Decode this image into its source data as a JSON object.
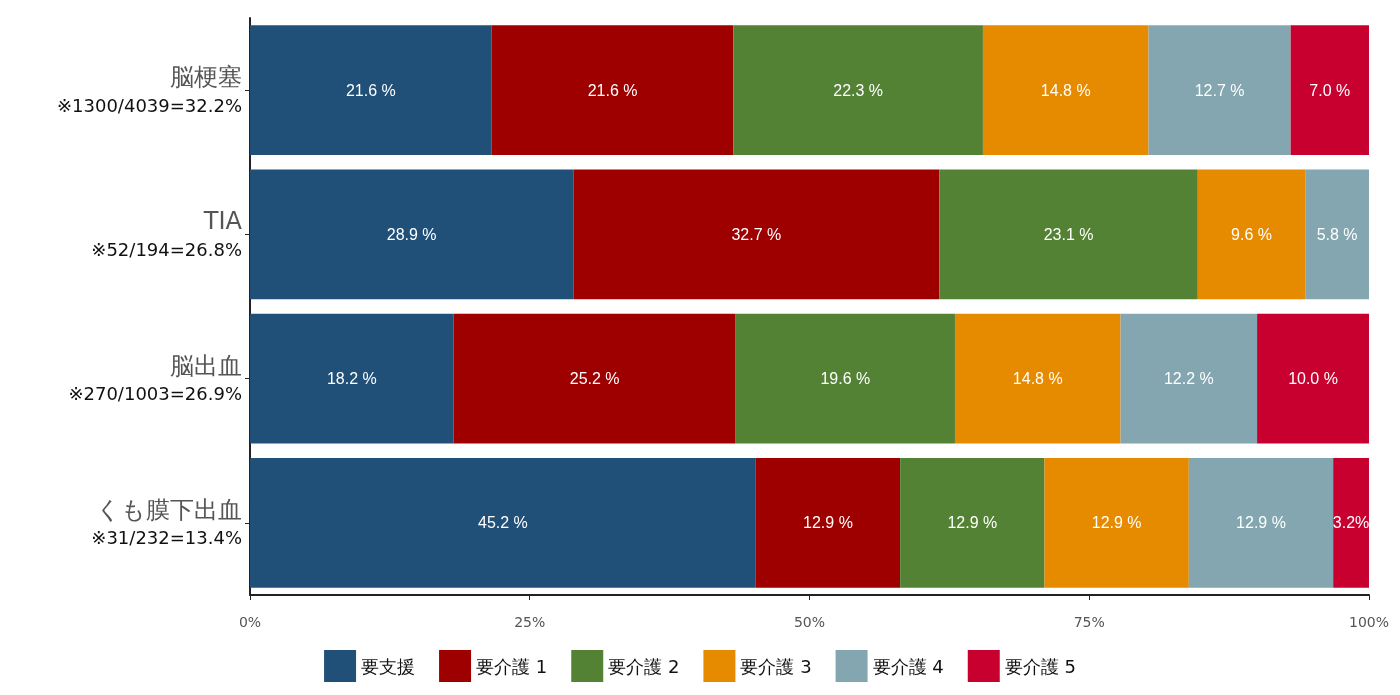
{
  "chart_data": {
    "type": "bar",
    "orientation": "horizontal",
    "stacked": true,
    "categories": [
      "脳梗塞\n※1300/4039=32.2%",
      "TIA\n※52/194=26.8%",
      "脳出血\n※270/1003=26.9%",
      "くも膜下出血\n※31/232=13.4%"
    ],
    "xlim": [
      0,
      100
    ],
    "xticks": [
      {
        "value": 0,
        "label": "0%"
      },
      {
        "value": 25,
        "label": "25%"
      },
      {
        "value": 50,
        "label": "50%"
      },
      {
        "value": 75,
        "label": "75%"
      },
      {
        "value": 100,
        "label": "100%"
      }
    ],
    "series": [
      {
        "name": "要支援",
        "color": "#204f78",
        "values": [
          21.6,
          28.9,
          18.2,
          45.2
        ],
        "value_labels": [
          "21.6 %",
          "28.9 %",
          "18.2 %",
          "45.2 %"
        ]
      },
      {
        "name": "要介護 1",
        "color": "#9e0000",
        "values": [
          21.6,
          32.7,
          25.2,
          12.9
        ],
        "value_labels": [
          "21.6 %",
          "32.7 %",
          "25.2 %",
          "12.9 %"
        ]
      },
      {
        "name": "要介護 2",
        "color": "#548235",
        "values": [
          22.3,
          23.1,
          19.6,
          12.9
        ],
        "value_labels": [
          "22.3 %",
          "23.1 %",
          "19.6 %",
          "12.9 %"
        ]
      },
      {
        "name": "要介護 3",
        "color": "#e68a00",
        "values": [
          14.8,
          9.6,
          14.8,
          12.9
        ],
        "value_labels": [
          "14.8 %",
          "9.6 %",
          "14.8 %",
          "12.9 %"
        ]
      },
      {
        "name": "要介護 4",
        "color": "#84a6b0",
        "values": [
          12.7,
          5.8,
          12.2,
          12.9
        ],
        "value_labels": [
          "12.7 %",
          "5.8 %",
          "12.2 %",
          "12.9 %"
        ]
      },
      {
        "name": "要介護 5",
        "color": "#c8002f",
        "values": [
          7.0,
          null,
          10.0,
          3.2
        ],
        "value_labels": [
          "7.0 %",
          null,
          "10.0 %",
          "3.2%"
        ]
      }
    ],
    "grid": false,
    "legend": "bottom"
  }
}
